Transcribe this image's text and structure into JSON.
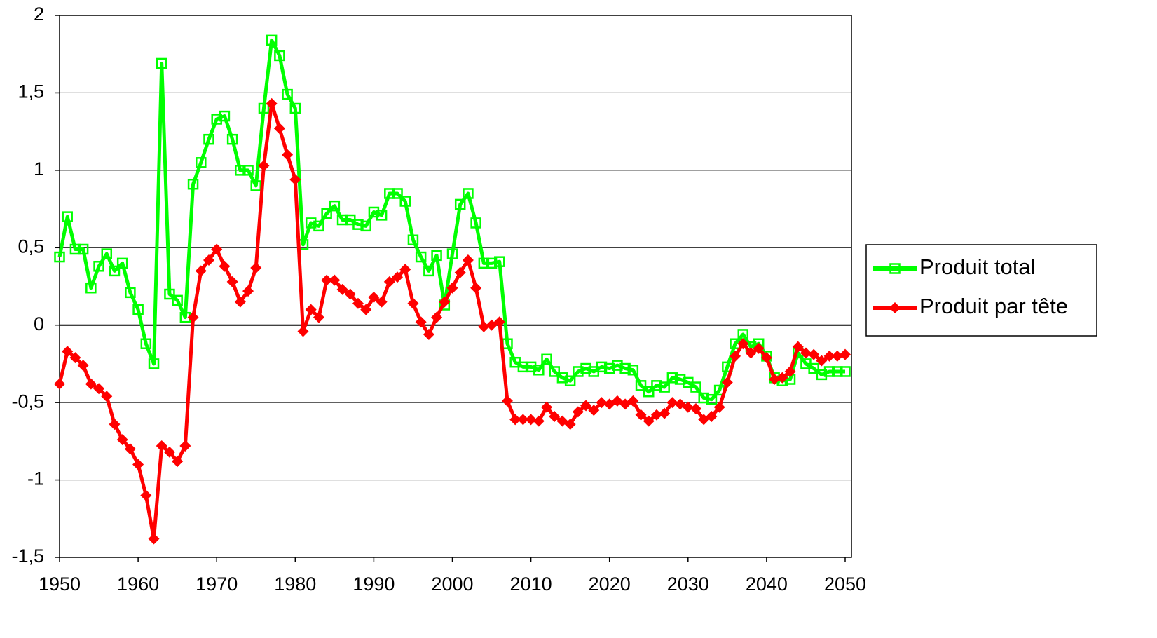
{
  "chart_data": {
    "type": "line",
    "x": [
      1950,
      1951,
      1952,
      1953,
      1954,
      1955,
      1956,
      1957,
      1958,
      1959,
      1960,
      1961,
      1962,
      1963,
      1964,
      1965,
      1966,
      1967,
      1968,
      1969,
      1970,
      1971,
      1972,
      1973,
      1974,
      1975,
      1976,
      1977,
      1978,
      1979,
      1980,
      1981,
      1982,
      1983,
      1984,
      1985,
      1986,
      1987,
      1988,
      1989,
      1990,
      1991,
      1992,
      1993,
      1994,
      1995,
      1996,
      1997,
      1998,
      1999,
      2000,
      2001,
      2002,
      2003,
      2004,
      2005,
      2006,
      2007,
      2008,
      2009,
      2010,
      2011,
      2012,
      2013,
      2014,
      2015,
      2016,
      2017,
      2018,
      2019,
      2020,
      2021,
      2022,
      2023,
      2024,
      2025,
      2026,
      2027,
      2028,
      2029,
      2030,
      2031,
      2032,
      2033,
      2034,
      2035,
      2036,
      2037,
      2038,
      2039,
      2040,
      2041,
      2042,
      2043,
      2044,
      2045,
      2046,
      2047,
      2048,
      2049,
      2050
    ],
    "series": [
      {
        "name": "Produit total",
        "color": "#00ff00",
        "marker": "square",
        "values": [
          0.44,
          0.7,
          0.49,
          0.49,
          0.24,
          0.38,
          0.46,
          0.35,
          0.4,
          0.21,
          0.1,
          -0.12,
          -0.25,
          1.69,
          0.2,
          0.16,
          0.05,
          0.91,
          1.05,
          1.2,
          1.33,
          1.35,
          1.2,
          1.0,
          1.0,
          0.9,
          1.4,
          1.84,
          1.74,
          1.49,
          1.4,
          0.52,
          0.66,
          0.64,
          0.72,
          0.77,
          0.68,
          0.68,
          0.65,
          0.64,
          0.73,
          0.71,
          0.85,
          0.85,
          0.8,
          0.55,
          0.44,
          0.35,
          0.45,
          0.13,
          0.46,
          0.78,
          0.85,
          0.66,
          0.4,
          0.4,
          0.41,
          -0.12,
          -0.24,
          -0.27,
          -0.27,
          -0.29,
          -0.22,
          -0.3,
          -0.34,
          -0.36,
          -0.3,
          -0.28,
          -0.3,
          -0.27,
          -0.28,
          -0.26,
          -0.28,
          -0.29,
          -0.39,
          -0.43,
          -0.39,
          -0.4,
          -0.34,
          -0.35,
          -0.37,
          -0.4,
          -0.47,
          -0.48,
          -0.42,
          -0.27,
          -0.12,
          -0.06,
          -0.14,
          -0.12,
          -0.2,
          -0.34,
          -0.36,
          -0.35,
          -0.18,
          -0.25,
          -0.28,
          -0.32,
          -0.3,
          -0.3,
          -0.3
        ]
      },
      {
        "name": "Produit par tête",
        "color": "#ff0000",
        "marker": "diamond",
        "values": [
          -0.38,
          -0.17,
          -0.21,
          -0.26,
          -0.38,
          -0.41,
          -0.46,
          -0.64,
          -0.74,
          -0.8,
          -0.9,
          -1.1,
          -1.38,
          -0.78,
          -0.82,
          -0.88,
          -0.78,
          0.05,
          0.35,
          0.42,
          0.49,
          0.38,
          0.28,
          0.15,
          0.22,
          0.37,
          1.03,
          1.43,
          1.27,
          1.1,
          0.94,
          -0.04,
          0.1,
          0.05,
          0.29,
          0.29,
          0.23,
          0.2,
          0.14,
          0.1,
          0.18,
          0.15,
          0.28,
          0.31,
          0.36,
          0.14,
          0.02,
          -0.06,
          0.05,
          0.15,
          0.24,
          0.34,
          0.42,
          0.24,
          -0.01,
          0.0,
          0.02,
          -0.49,
          -0.61,
          -0.61,
          -0.61,
          -0.62,
          -0.53,
          -0.59,
          -0.62,
          -0.64,
          -0.56,
          -0.52,
          -0.55,
          -0.5,
          -0.51,
          -0.49,
          -0.51,
          -0.49,
          -0.58,
          -0.62,
          -0.58,
          -0.57,
          -0.5,
          -0.51,
          -0.53,
          -0.54,
          -0.61,
          -0.59,
          -0.53,
          -0.37,
          -0.2,
          -0.12,
          -0.18,
          -0.15,
          -0.21,
          -0.35,
          -0.34,
          -0.3,
          -0.14,
          -0.18,
          -0.19,
          -0.23,
          -0.2,
          -0.2,
          -0.19
        ]
      }
    ],
    "xlim": [
      1950,
      2050
    ],
    "xticks": [
      1950,
      1960,
      1970,
      1980,
      1990,
      2000,
      2010,
      2020,
      2030,
      2040,
      2050
    ],
    "ylim": [
      -1.5,
      2
    ],
    "yticks": [
      {
        "value": -1.5,
        "label": "-1,5"
      },
      -1,
      {
        "value": -0.5,
        "label": "-0,5"
      },
      0,
      {
        "value": 0.5,
        "label": "0,5"
      },
      1,
      {
        "value": 1.5,
        "label": "1,5"
      },
      2
    ],
    "grid": true,
    "legend": "right"
  }
}
